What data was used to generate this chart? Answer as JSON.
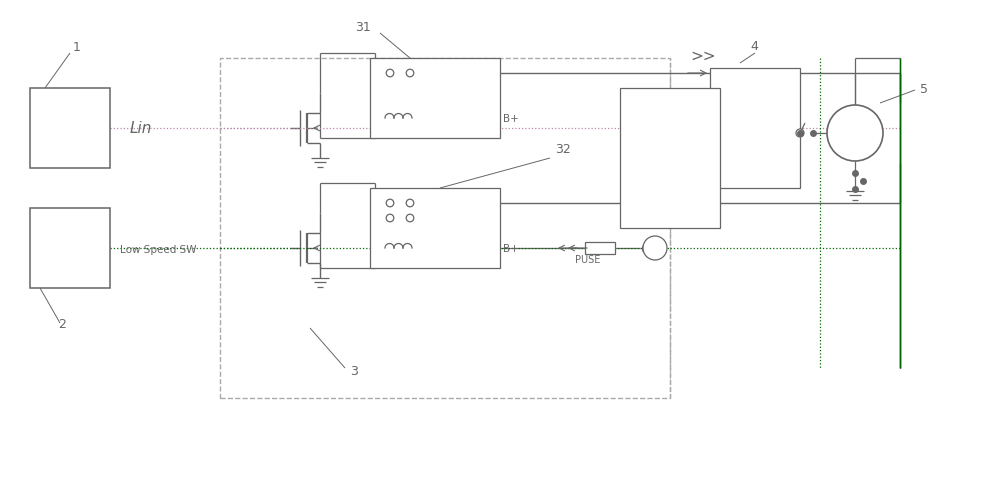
{
  "bg": "#ffffff",
  "lc": "#666666",
  "gc": "#006600",
  "pc": "#bb88aa",
  "dc": "#aaaaaa",
  "figsize": [
    10.0,
    4.98
  ],
  "dpi": 100,
  "xlim": [
    0,
    100
  ],
  "ylim": [
    0,
    49.8
  ]
}
